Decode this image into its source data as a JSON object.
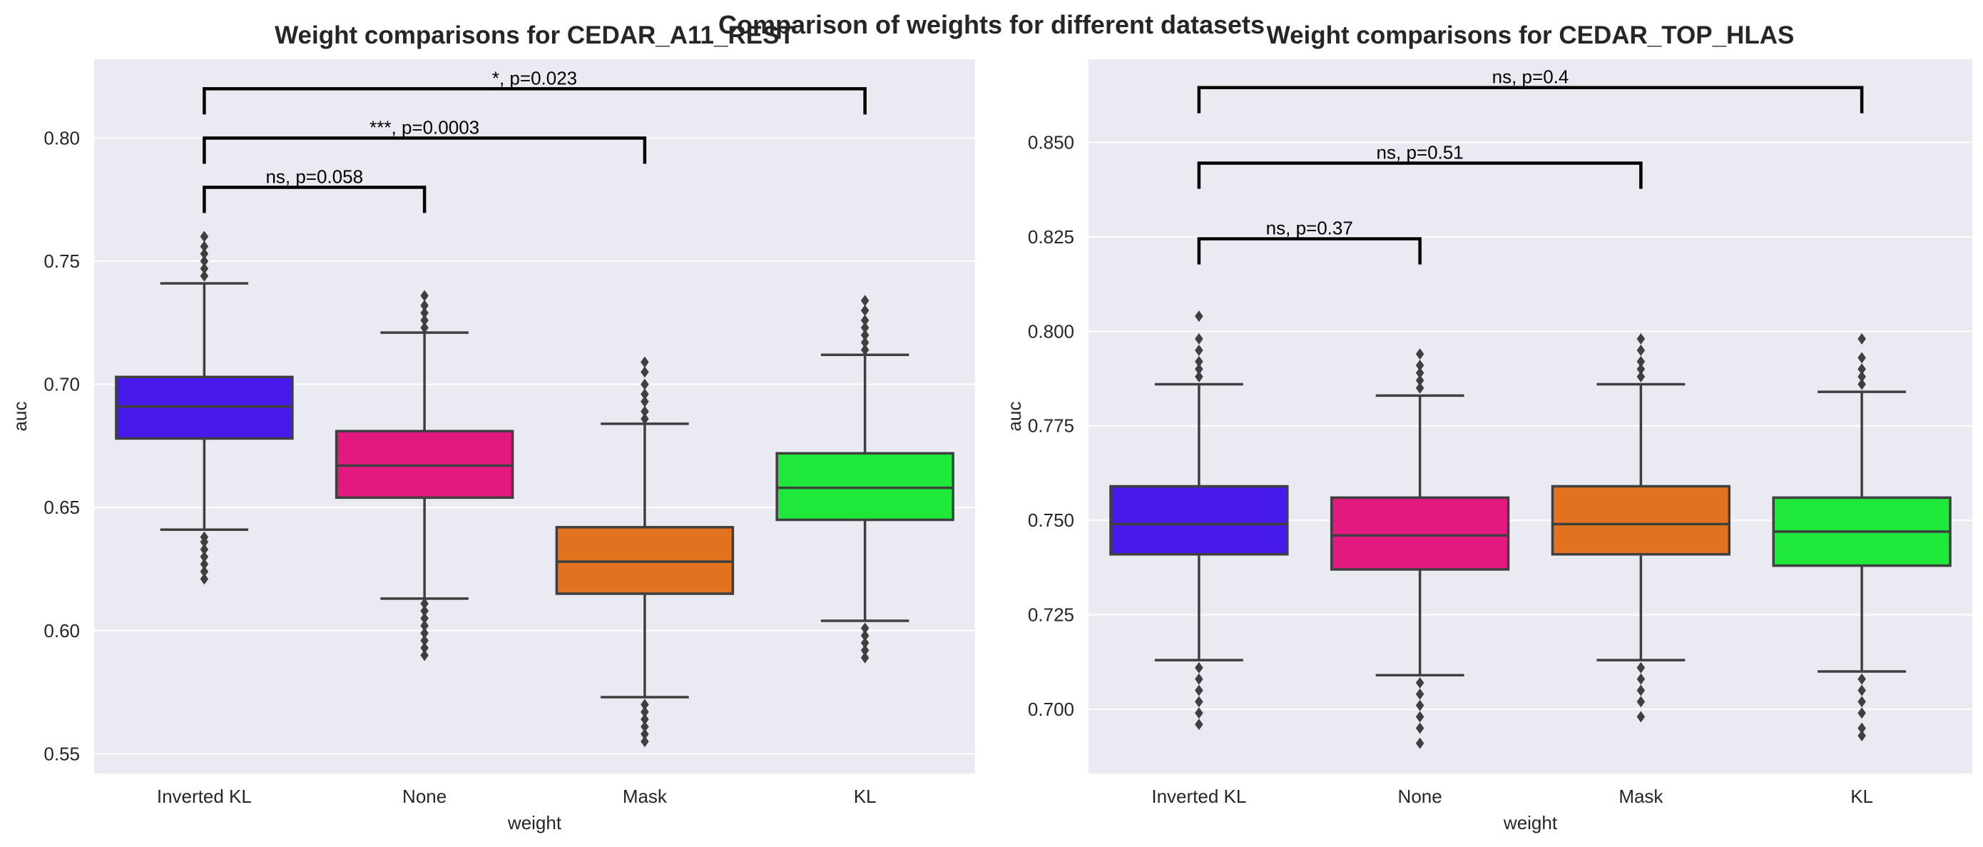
{
  "figure": {
    "suptitle": "Comparison of weights for different datasets"
  },
  "colors": {
    "panel_bg": "#EAEAF2",
    "grid": "#FFFFFF",
    "box_edge": "#3F3F3F",
    "Inverted KL": "#4719EB",
    "None": "#E3197F",
    "Mask": "#E1721F",
    "KL": "#1EE839"
  },
  "chart_data": [
    {
      "type": "box",
      "title": "Weight comparisons for CEDAR_A11_REST",
      "xlabel": "weight",
      "ylabel": "auc",
      "categories": [
        "Inverted KL",
        "None",
        "Mask",
        "KL"
      ],
      "ylim": [
        0.542,
        0.832
      ],
      "yticks": [
        0.55,
        0.6,
        0.65,
        0.7,
        0.75,
        0.8
      ],
      "ytick_labels": [
        "0.55",
        "0.60",
        "0.65",
        "0.70",
        "0.75",
        "0.80"
      ],
      "grid": true,
      "boxes": [
        {
          "name": "Inverted KL",
          "whislo": 0.641,
          "q1": 0.678,
          "med": 0.691,
          "q3": 0.703,
          "whishi": 0.741,
          "fliers": [
            0.621,
            0.624,
            0.627,
            0.63,
            0.633,
            0.636,
            0.638,
            0.744,
            0.747,
            0.75,
            0.753,
            0.756,
            0.76
          ]
        },
        {
          "name": "None",
          "whislo": 0.613,
          "q1": 0.654,
          "med": 0.667,
          "q3": 0.681,
          "whishi": 0.721,
          "fliers": [
            0.59,
            0.593,
            0.596,
            0.599,
            0.602,
            0.605,
            0.608,
            0.611,
            0.723,
            0.726,
            0.729,
            0.732,
            0.736
          ]
        },
        {
          "name": "Mask",
          "whislo": 0.573,
          "q1": 0.615,
          "med": 0.628,
          "q3": 0.642,
          "whishi": 0.684,
          "fliers": [
            0.555,
            0.558,
            0.561,
            0.564,
            0.567,
            0.57,
            0.686,
            0.689,
            0.693,
            0.696,
            0.7,
            0.705,
            0.709
          ]
        },
        {
          "name": "KL",
          "whislo": 0.604,
          "q1": 0.645,
          "med": 0.658,
          "q3": 0.672,
          "whishi": 0.712,
          "fliers": [
            0.589,
            0.592,
            0.595,
            0.598,
            0.601,
            0.714,
            0.717,
            0.72,
            0.723,
            0.726,
            0.73,
            0.734
          ]
        }
      ],
      "annotations": [
        {
          "from": "Inverted KL",
          "to": "None",
          "y": 0.78,
          "label": "ns, p=0.058"
        },
        {
          "from": "Inverted KL",
          "to": "Mask",
          "y": 0.8,
          "label": "***, p=0.0003"
        },
        {
          "from": "Inverted KL",
          "to": "KL",
          "y": 0.82,
          "label": "*, p=0.023"
        }
      ]
    },
    {
      "type": "box",
      "title": "Weight comparisons for CEDAR_TOP_HLAS",
      "xlabel": "weight",
      "ylabel": "auc",
      "categories": [
        "Inverted KL",
        "None",
        "Mask",
        "KL"
      ],
      "ylim": [
        0.683,
        0.872
      ],
      "yticks": [
        0.7,
        0.725,
        0.75,
        0.775,
        0.8,
        0.825,
        0.85
      ],
      "ytick_labels": [
        "0.700",
        "0.725",
        "0.750",
        "0.775",
        "0.800",
        "0.825",
        "0.850"
      ],
      "grid": true,
      "boxes": [
        {
          "name": "Inverted KL",
          "whislo": 0.713,
          "q1": 0.741,
          "med": 0.749,
          "q3": 0.759,
          "whishi": 0.786,
          "fliers": [
            0.696,
            0.699,
            0.702,
            0.705,
            0.708,
            0.711,
            0.788,
            0.79,
            0.792,
            0.795,
            0.798,
            0.804
          ]
        },
        {
          "name": "None",
          "whislo": 0.709,
          "q1": 0.737,
          "med": 0.746,
          "q3": 0.756,
          "whishi": 0.783,
          "fliers": [
            0.691,
            0.695,
            0.698,
            0.701,
            0.704,
            0.707,
            0.785,
            0.787,
            0.789,
            0.791,
            0.794
          ]
        },
        {
          "name": "Mask",
          "whislo": 0.713,
          "q1": 0.741,
          "med": 0.749,
          "q3": 0.759,
          "whishi": 0.786,
          "fliers": [
            0.698,
            0.702,
            0.705,
            0.708,
            0.711,
            0.788,
            0.79,
            0.792,
            0.795,
            0.798
          ]
        },
        {
          "name": "KL",
          "whislo": 0.71,
          "q1": 0.738,
          "med": 0.747,
          "q3": 0.756,
          "whishi": 0.784,
          "fliers": [
            0.693,
            0.695,
            0.699,
            0.702,
            0.705,
            0.708,
            0.786,
            0.788,
            0.79,
            0.793,
            0.798
          ]
        }
      ],
      "annotations": [
        {
          "from": "Inverted KL",
          "to": "None",
          "y": 0.8245,
          "label": "ns, p=0.37"
        },
        {
          "from": "Inverted KL",
          "to": "Mask",
          "y": 0.8445,
          "label": "ns, p=0.51"
        },
        {
          "from": "Inverted KL",
          "to": "KL",
          "y": 0.8645,
          "label": "ns, p=0.4"
        }
      ]
    }
  ]
}
